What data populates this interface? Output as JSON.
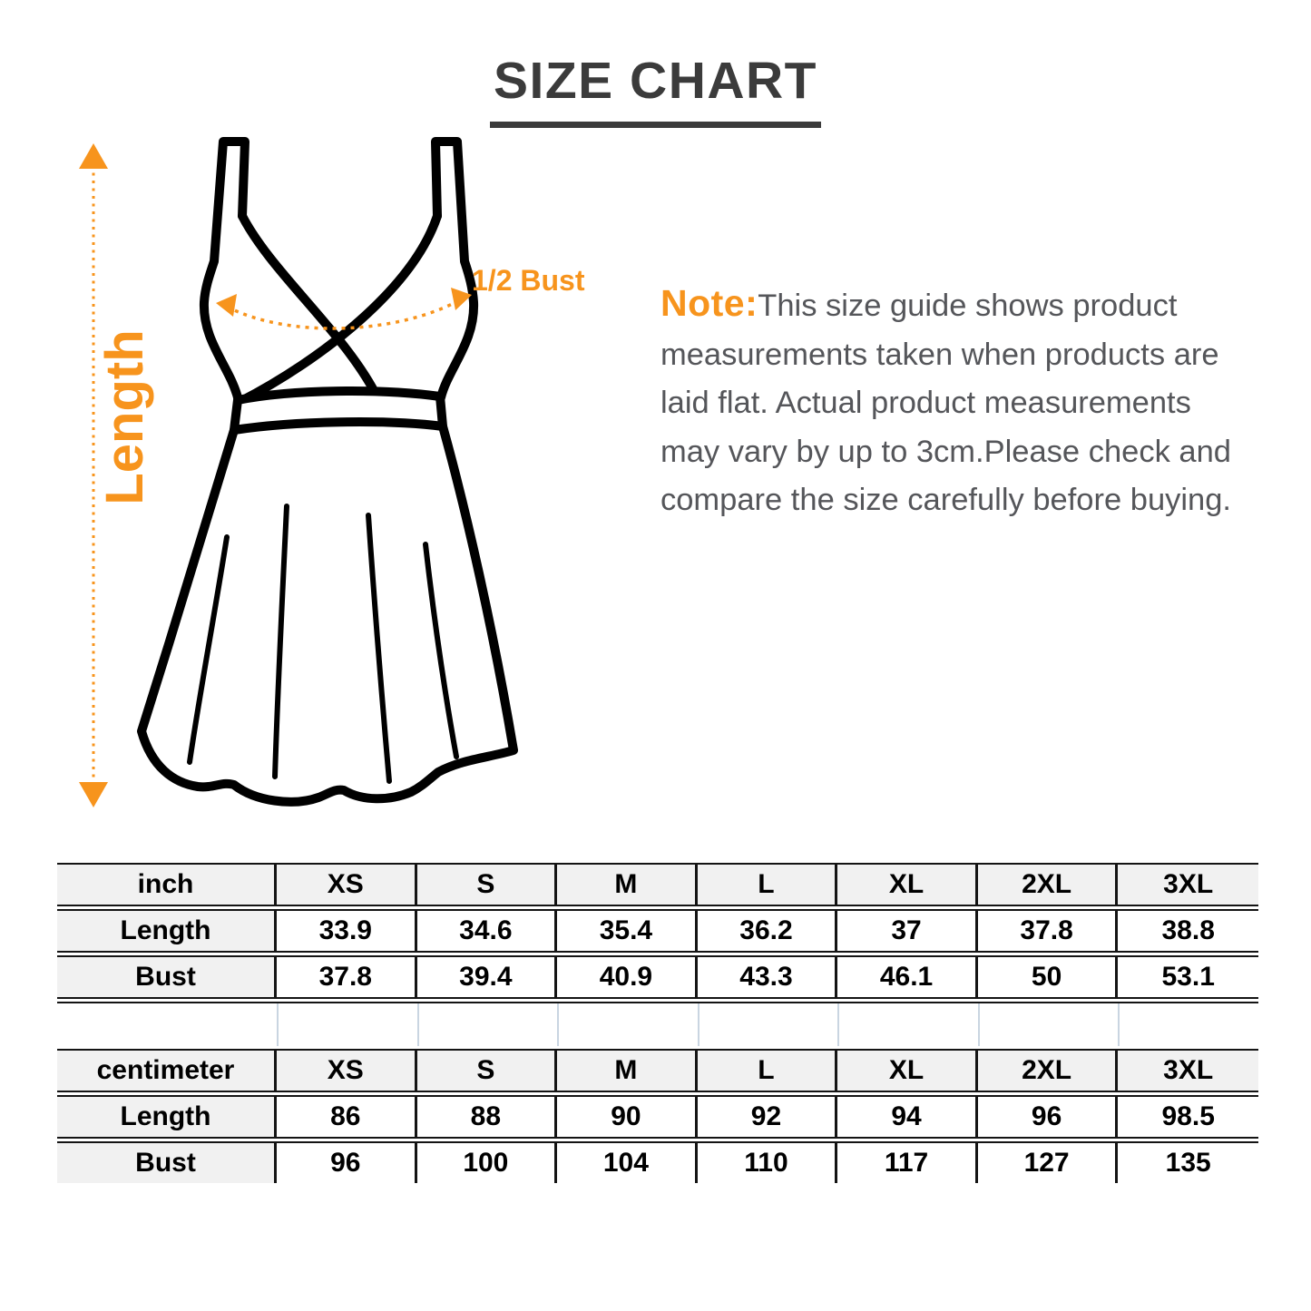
{
  "title": "SIZE CHART",
  "diagram": {
    "length_label": "Length",
    "bust_label": "1/2 Bust"
  },
  "note": {
    "prefix": "Note:",
    "lines": [
      "This size guide shows product",
      "measurements taken when products are",
      "laid flat. Actual product measurements",
      "may vary by up to 3cm.Please check and",
      "compare the size carefully before buying."
    ]
  },
  "inch_table": {
    "unit_label": "inch",
    "sizes": [
      "XS",
      "S",
      "M",
      "L",
      "XL",
      "2XL",
      "3XL"
    ],
    "rows": [
      {
        "label": "Length",
        "values": [
          "33.9",
          "34.6",
          "35.4",
          "36.2",
          "37",
          "37.8",
          "38.8"
        ]
      },
      {
        "label": "Bust",
        "values": [
          "37.8",
          "39.4",
          "40.9",
          "43.3",
          "46.1",
          "50",
          "53.1"
        ]
      }
    ]
  },
  "cm_table": {
    "unit_label": "centimeter",
    "sizes": [
      "XS",
      "S",
      "M",
      "L",
      "XL",
      "2XL",
      "3XL"
    ],
    "rows": [
      {
        "label": "Length",
        "values": [
          "86",
          "88",
          "90",
          "92",
          "94",
          "96",
          "98.5"
        ]
      },
      {
        "label": "Bust",
        "values": [
          "96",
          "100",
          "104",
          "110",
          "117",
          "127",
          "135"
        ]
      }
    ]
  },
  "colors": {
    "accent_orange": "#f7941d",
    "title_gray": "#3b3b3b",
    "note_gray": "#55565a",
    "table_border": "#141414",
    "header_bg": "#f1f1f1",
    "faint_grid": "#c9d5e1"
  }
}
